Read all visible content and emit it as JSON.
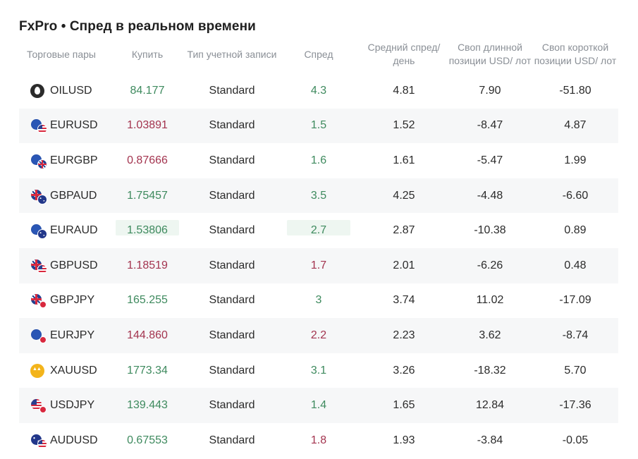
{
  "title": "FxPro • Спред в реальном времени",
  "columns": {
    "pair": "Торговые пары",
    "buy": "Купить",
    "type": "Тип учетной записи",
    "spread": "Спред",
    "avg": "Средний спред/ день",
    "long": "Своп длинной позиции USD/ лот",
    "short": "Своп короткой позиции USD/ лот"
  },
  "rows": [
    {
      "pair": "OILUSD",
      "icon": "oil-icon",
      "buy": "84.177",
      "buy_dir": "up",
      "type": "Standard",
      "spread": "4.3",
      "spread_dir": "up",
      "avg": "4.81",
      "long": "7.90",
      "short": "-51.80"
    },
    {
      "pair": "EURUSD",
      "icon": "eur-usd-flag-icon",
      "buy": "1.03891",
      "buy_dir": "down",
      "type": "Standard",
      "spread": "1.5",
      "spread_dir": "up",
      "avg": "1.52",
      "long": "-8.47",
      "short": "4.87"
    },
    {
      "pair": "EURGBP",
      "icon": "eur-gbp-flag-icon",
      "buy": "0.87666",
      "buy_dir": "down",
      "type": "Standard",
      "spread": "1.6",
      "spread_dir": "up",
      "avg": "1.61",
      "long": "-5.47",
      "short": "1.99"
    },
    {
      "pair": "GBPAUD",
      "icon": "gbp-aud-flag-icon",
      "buy": "1.75457",
      "buy_dir": "up",
      "type": "Standard",
      "spread": "3.5",
      "spread_dir": "up",
      "avg": "4.25",
      "long": "-4.48",
      "short": "-6.60"
    },
    {
      "pair": "EURAUD",
      "icon": "eur-aud-flag-icon",
      "buy": "1.53806",
      "buy_dir": "up",
      "type": "Standard",
      "spread": "2.7",
      "spread_dir": "up",
      "avg": "2.87",
      "long": "-10.38",
      "short": "0.89",
      "highlight": true
    },
    {
      "pair": "GBPUSD",
      "icon": "gbp-usd-flag-icon",
      "buy": "1.18519",
      "buy_dir": "down",
      "type": "Standard",
      "spread": "1.7",
      "spread_dir": "down",
      "avg": "2.01",
      "long": "-6.26",
      "short": "0.48"
    },
    {
      "pair": "GBPJPY",
      "icon": "gbp-jpy-flag-icon",
      "buy": "165.255",
      "buy_dir": "up",
      "type": "Standard",
      "spread": "3",
      "spread_dir": "up",
      "avg": "3.74",
      "long": "11.02",
      "short": "-17.09"
    },
    {
      "pair": "EURJPY",
      "icon": "eur-jpy-flag-icon",
      "buy": "144.860",
      "buy_dir": "down",
      "type": "Standard",
      "spread": "2.2",
      "spread_dir": "down",
      "avg": "2.23",
      "long": "3.62",
      "short": "-8.74"
    },
    {
      "pair": "XAUUSD",
      "icon": "gold-icon",
      "buy": "1773.34",
      "buy_dir": "up",
      "type": "Standard",
      "spread": "3.1",
      "spread_dir": "up",
      "avg": "3.26",
      "long": "-18.32",
      "short": "5.70"
    },
    {
      "pair": "USDJPY",
      "icon": "usd-jpy-flag-icon",
      "buy": "139.443",
      "buy_dir": "up",
      "type": "Standard",
      "spread": "1.4",
      "spread_dir": "up",
      "avg": "1.65",
      "long": "12.84",
      "short": "-17.36"
    },
    {
      "pair": "AUDUSD",
      "icon": "aud-usd-flag-icon",
      "buy": "0.67553",
      "buy_dir": "up",
      "type": "Standard",
      "spread": "1.8",
      "spread_dir": "down",
      "avg": "1.93",
      "long": "-3.84",
      "short": "-0.05"
    }
  ],
  "colors": {
    "up": "#3e8a5e",
    "down": "#a3344f",
    "header_text": "#8a8f96",
    "alt_row": "#f6f7f8",
    "highlight": "#eef6f1"
  }
}
